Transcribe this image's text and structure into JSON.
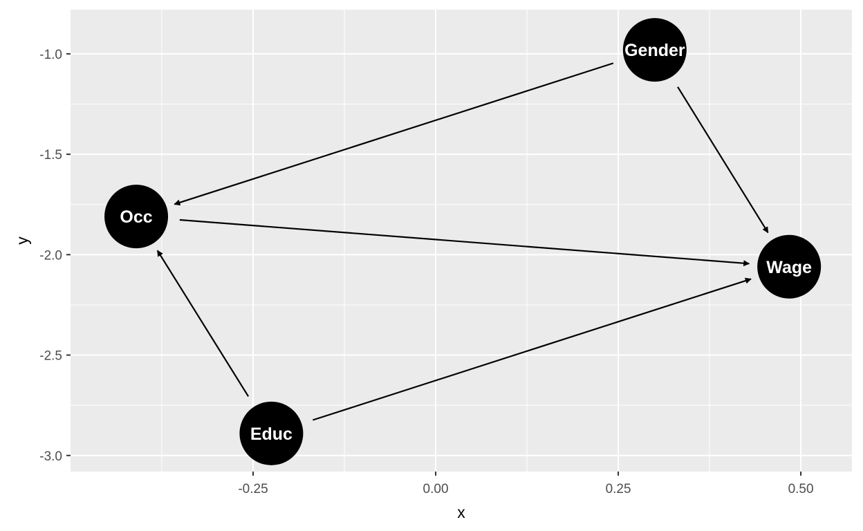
{
  "chart_data": {
    "type": "dag",
    "xlabel": "x",
    "ylabel": "y",
    "xlim": [
      -0.5,
      0.57
    ],
    "ylim": [
      -3.08,
      -0.78
    ],
    "x_ticks": [
      -0.25,
      0.0,
      0.25,
      0.5
    ],
    "x_tick_labels": [
      "-0.25",
      "0.00",
      "0.25",
      "0.50"
    ],
    "x_minor_ticks": [
      -0.375,
      -0.125,
      0.125,
      0.375
    ],
    "y_ticks": [
      -1.0,
      -1.5,
      -2.0,
      -2.5,
      -3.0
    ],
    "y_tick_labels": [
      "-1.0",
      "-1.5",
      "-2.0",
      "-2.5",
      "-3.0"
    ],
    "y_minor_ticks": [
      -1.25,
      -1.75,
      -2.25,
      -2.75
    ],
    "grid": true,
    "colors": {
      "panel": "#ebebeb",
      "grid": "#ffffff",
      "node": "#000000",
      "node_text": "#ffffff",
      "edge": "#000000"
    },
    "nodes": [
      {
        "id": "gender",
        "label": "Gender",
        "x": 0.3,
        "y": -0.98
      },
      {
        "id": "occ",
        "label": "Occ",
        "x": -0.41,
        "y": -1.81
      },
      {
        "id": "wage",
        "label": "Wage",
        "x": 0.484,
        "y": -2.06
      },
      {
        "id": "educ",
        "label": "Educ",
        "x": -0.225,
        "y": -2.89
      }
    ],
    "edges": [
      {
        "from": "gender",
        "to": "occ"
      },
      {
        "from": "gender",
        "to": "wage"
      },
      {
        "from": "occ",
        "to": "wage"
      },
      {
        "from": "educ",
        "to": "occ"
      },
      {
        "from": "educ",
        "to": "wage"
      }
    ]
  }
}
